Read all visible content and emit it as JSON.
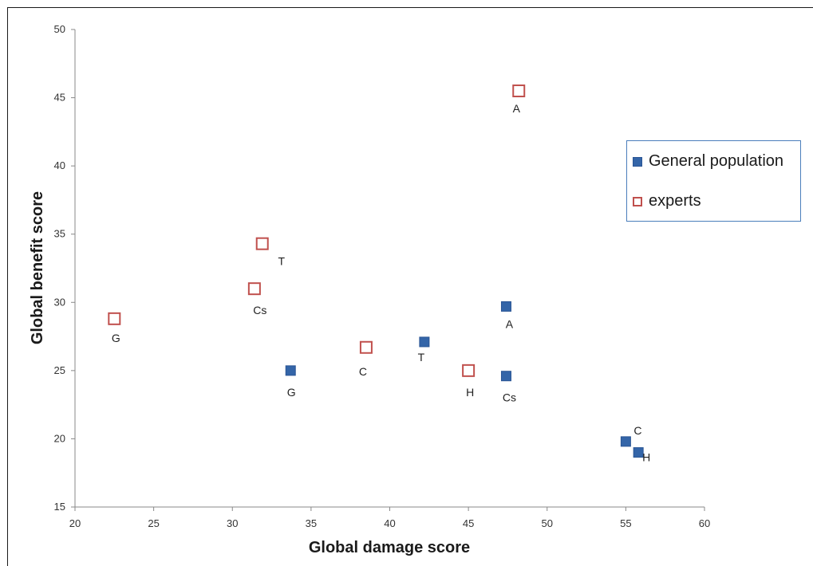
{
  "chart_data": {
    "type": "scatter",
    "xlabel": "Global damage score",
    "ylabel": "Global benefit score",
    "xlim": [
      20,
      60
    ],
    "ylim": [
      15,
      50
    ],
    "xticks": [
      20,
      25,
      30,
      35,
      40,
      45,
      50,
      55,
      60
    ],
    "yticks": [
      15,
      20,
      25,
      30,
      35,
      40,
      45,
      50
    ],
    "grid": false,
    "legend_position": "right",
    "series": [
      {
        "name": "General population",
        "marker": "filled-square",
        "color": "#3465a8",
        "points": [
          {
            "label": "G",
            "x": 33.7,
            "y": 25.0
          },
          {
            "label": "T",
            "x": 42.2,
            "y": 27.1
          },
          {
            "label": "A",
            "x": 47.4,
            "y": 29.7
          },
          {
            "label": "Cs",
            "x": 47.4,
            "y": 24.6
          },
          {
            "label": "C",
            "x": 55.0,
            "y": 19.8
          },
          {
            "label": "H",
            "x": 55.8,
            "y": 19.0
          }
        ]
      },
      {
        "name": "experts",
        "marker": "hollow-square",
        "color": "#c0504d",
        "points": [
          {
            "label": "G",
            "x": 22.5,
            "y": 28.8
          },
          {
            "label": "Cs",
            "x": 31.4,
            "y": 31.0
          },
          {
            "label": "T",
            "x": 31.9,
            "y": 34.3
          },
          {
            "label": "C",
            "x": 38.5,
            "y": 26.7
          },
          {
            "label": "H",
            "x": 45.0,
            "y": 25.0
          },
          {
            "label": "A",
            "x": 48.2,
            "y": 45.5
          }
        ]
      }
    ]
  }
}
